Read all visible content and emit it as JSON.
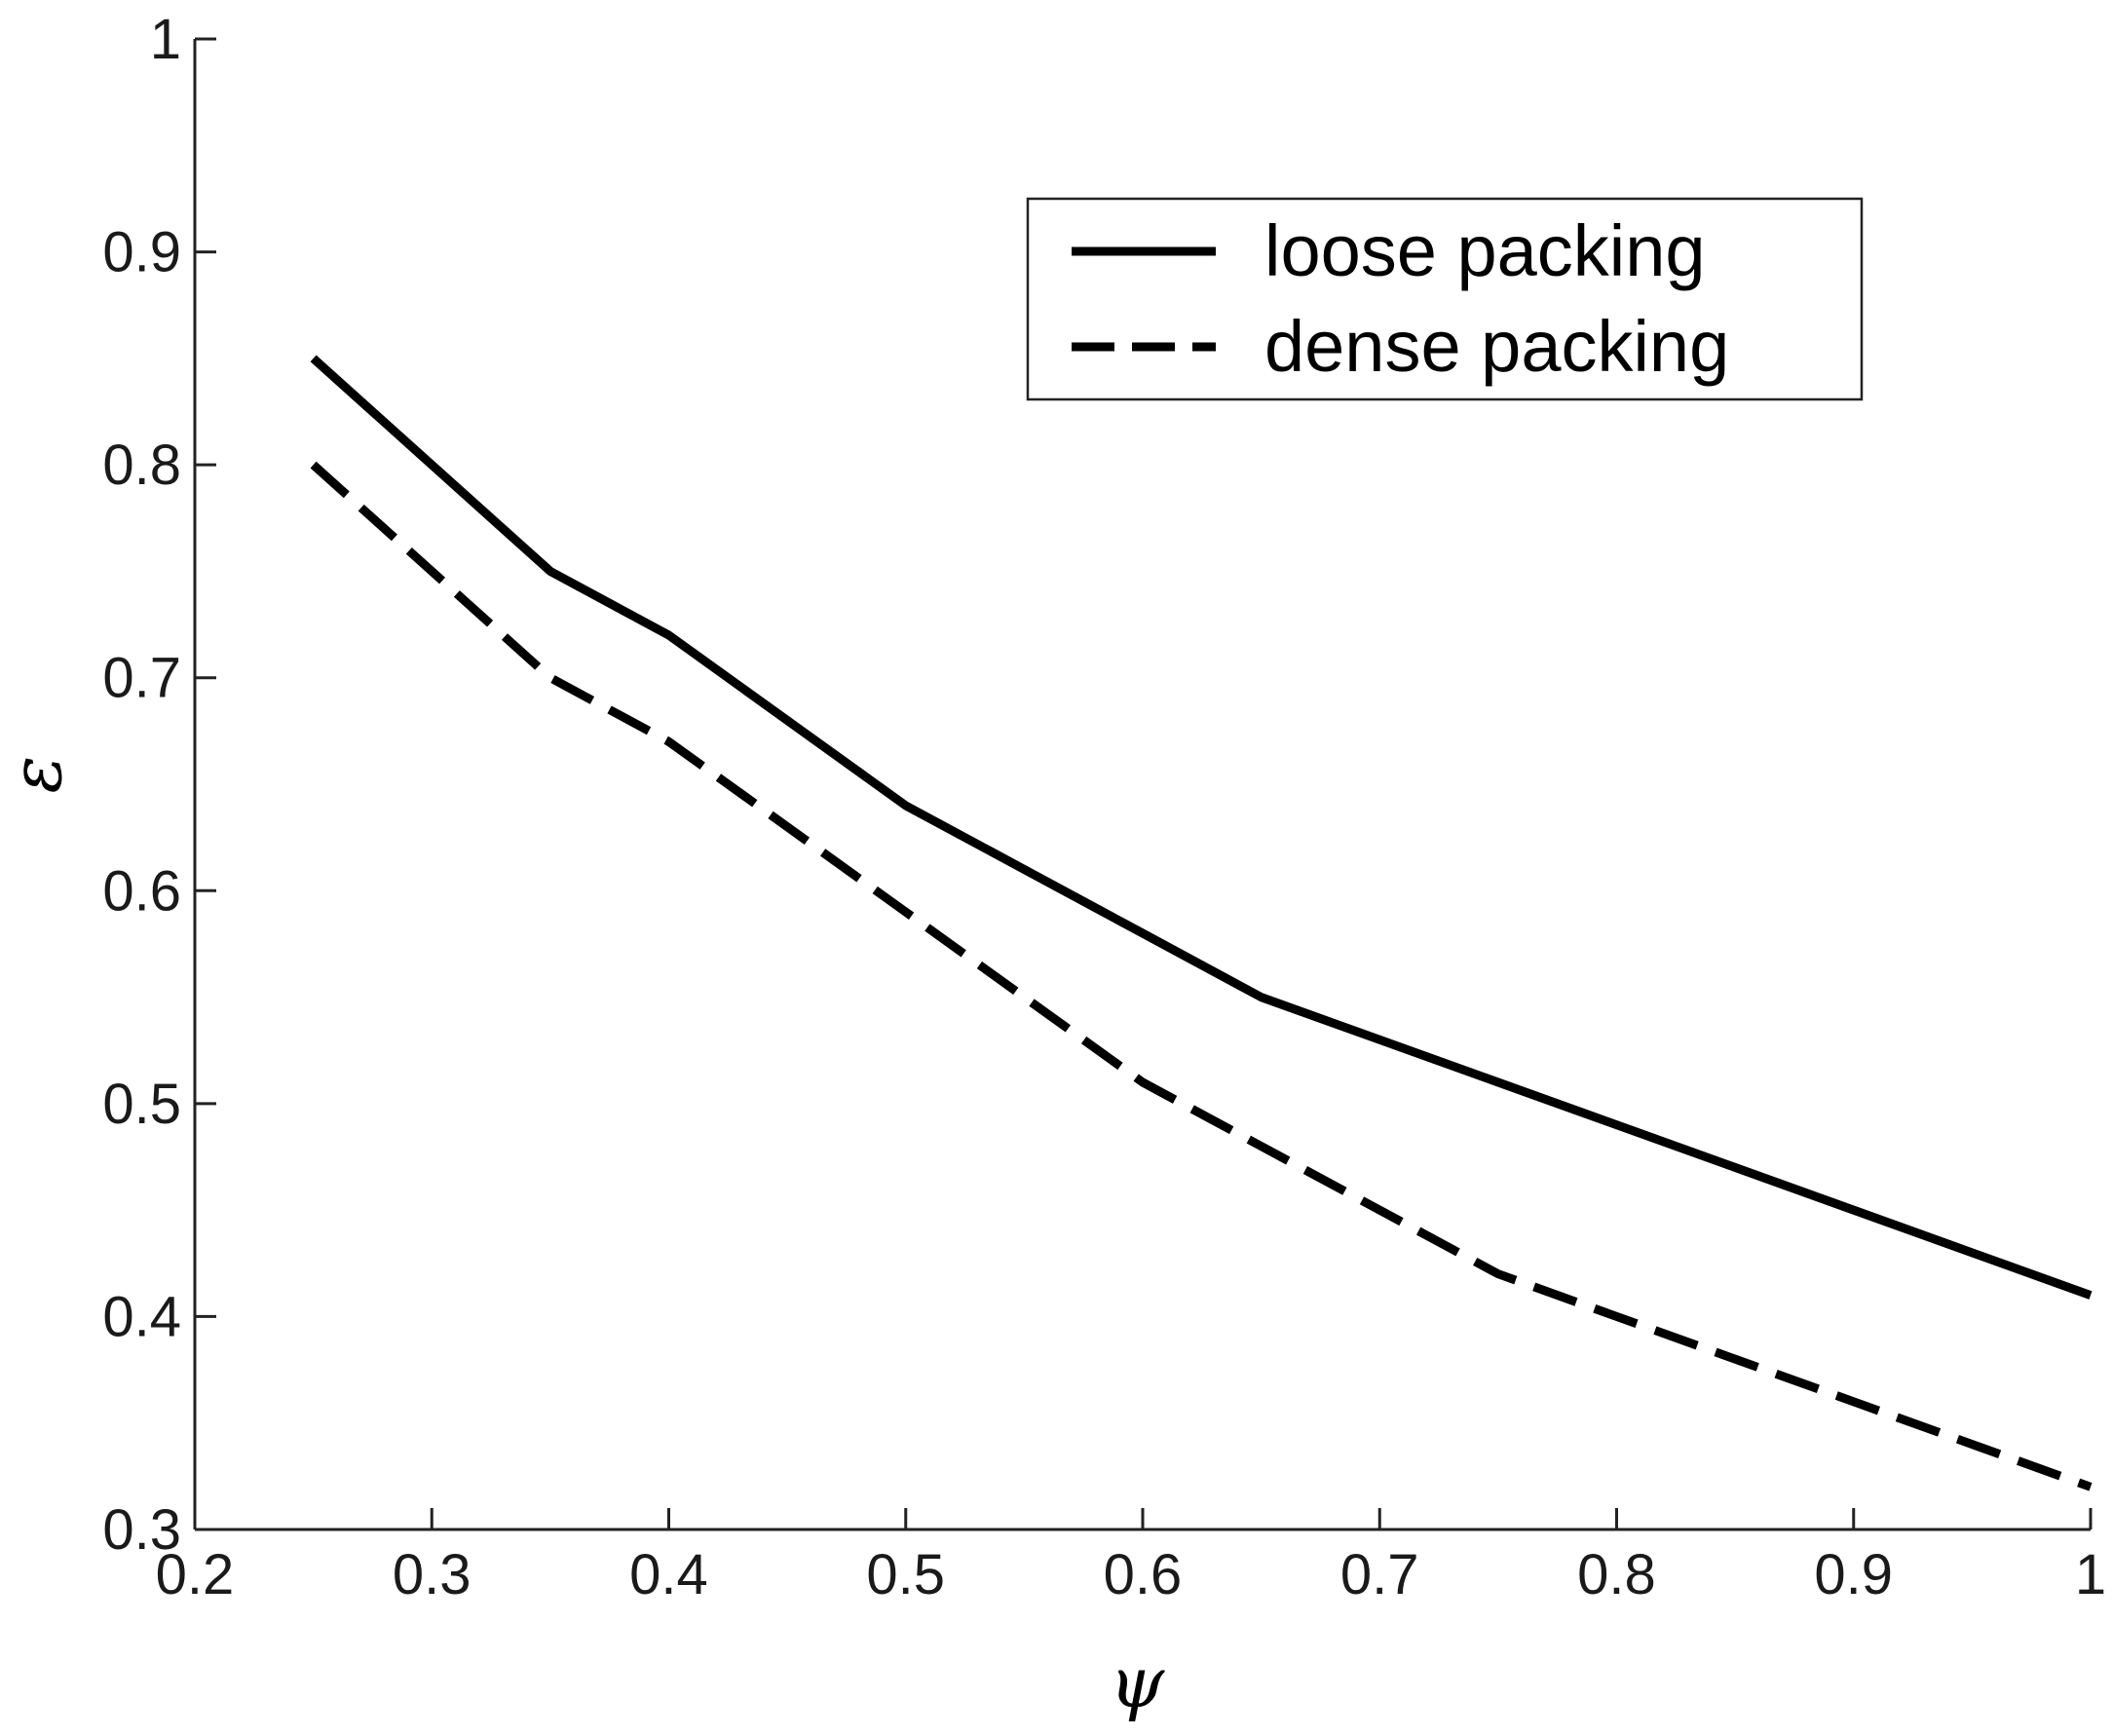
{
  "chart_data": {
    "type": "line",
    "title": "",
    "xlabel": "ψ",
    "ylabel": "ε",
    "xlim": [
      0.2,
      1.0
    ],
    "ylim": [
      0.3,
      1.0
    ],
    "xticks": [
      "0.2",
      "0.3",
      "0.4",
      "0.5",
      "0.6",
      "0.7",
      "0.8",
      "0.9",
      "1"
    ],
    "yticks": [
      "0.3",
      "0.4",
      "0.5",
      "0.6",
      "0.7",
      "0.8",
      "0.9",
      "1"
    ],
    "grid": false,
    "legend_position": "top-right",
    "series": [
      {
        "name": "loose packing",
        "style": "solid",
        "color": "#000000",
        "x": [
          0.25,
          0.35,
          0.4,
          0.5,
          0.6,
          0.65,
          0.75,
          0.85,
          1.0
        ],
        "y": [
          0.85,
          0.75,
          0.72,
          0.64,
          0.58,
          0.55,
          0.51,
          0.47,
          0.41
        ]
      },
      {
        "name": "dense packing",
        "style": "dashed",
        "color": "#000000",
        "x": [
          0.25,
          0.35,
          0.4,
          0.5,
          0.6,
          0.65,
          0.75,
          0.85,
          1.0
        ],
        "y": [
          0.8,
          0.7,
          0.67,
          0.59,
          0.51,
          0.48,
          0.42,
          0.38,
          0.32
        ]
      }
    ]
  }
}
